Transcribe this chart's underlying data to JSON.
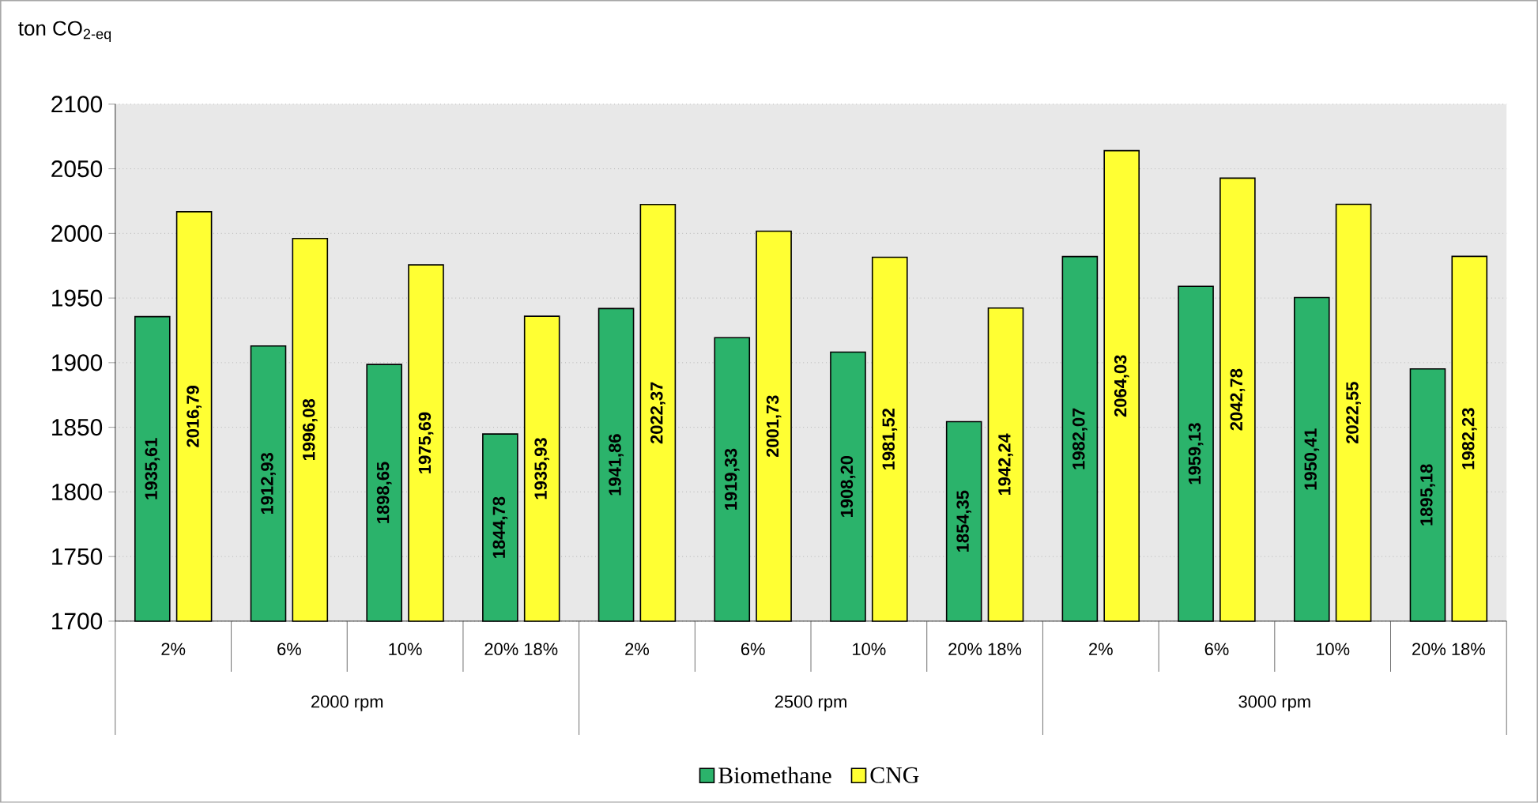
{
  "chart_data": {
    "type": "bar",
    "ylabel": "ton CO$_{2-eq}$",
    "categories": [
      "2%",
      "6%",
      "10%",
      "20% 18%",
      "2%",
      "6%",
      "10%",
      "20% 18%",
      "2%",
      "6%",
      "10%",
      "20% 18%"
    ],
    "annotations": [
      "2000 rpm",
      "2500 rpm",
      "3000 rpm"
    ],
    "series": [
      {
        "name": "Biomethane",
        "color": "#2bb36b",
        "values": [
          1935.61,
          1912.93,
          1898.65,
          1844.78,
          1941.86,
          1919.33,
          1908.2,
          1854.35,
          1982.07,
          1959.13,
          1950.41,
          1895.18
        ],
        "value_labels": [
          "1935,61",
          "1912,93",
          "1898,65",
          "1844,78",
          "1941,86",
          "1919,33",
          "1908,20",
          "1854,35",
          "1982,07",
          "1959,13",
          "1950,41",
          "1895,18"
        ]
      },
      {
        "name": "CNG",
        "color": "#ffff33",
        "values": [
          2016.79,
          1996.08,
          1975.69,
          1935.93,
          2022.37,
          2001.73,
          1981.52,
          1942.24,
          2064.03,
          2042.78,
          2022.55,
          1982.23
        ],
        "value_labels": [
          "2016,79",
          "1996,08",
          "1975,69",
          "1935,93",
          "2022,37",
          "2001,73",
          "1981,52",
          "1942,24",
          "2064,03",
          "2042,78",
          "2022,55",
          "1982,23"
        ]
      }
    ],
    "ylim": [
      1700,
      2100
    ],
    "yticks": [
      1700,
      1750,
      1800,
      1850,
      1900,
      1950,
      2000,
      2050,
      2100
    ],
    "grid": "y",
    "legend": "bottom"
  }
}
